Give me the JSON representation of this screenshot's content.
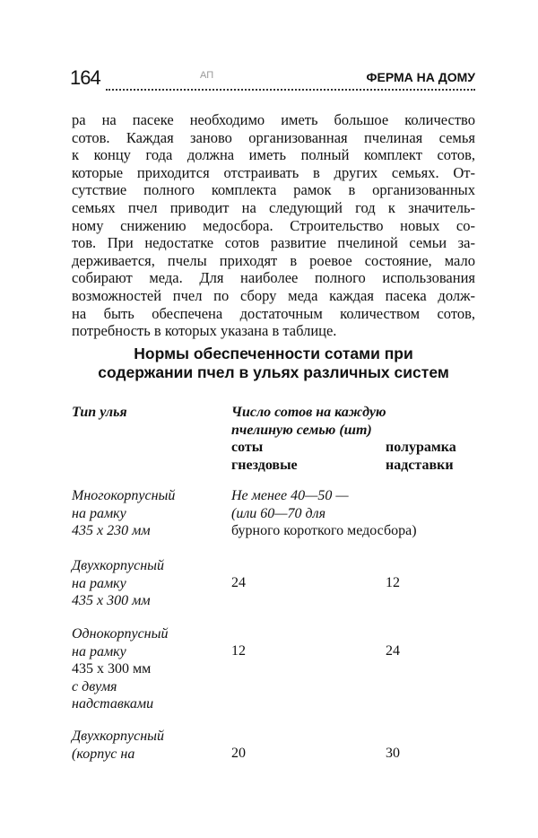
{
  "header": {
    "page_number": "164",
    "mark": "АП",
    "running_title": "ФЕРМА НА ДОМУ"
  },
  "paragraph_lines": [
    "ра на пасеке необходимо иметь большое количество",
    "сотов. Каждая заново организованная пчелиная семья",
    "к концу года должна иметь полный комплект сотов,",
    "которые приходится отстраивать в других семьях. От-",
    "сутствие полного комплекта рамок в организованных",
    "семьях пчел приводит на следующий год к значитель-",
    "ному снижению медосбора. Строительство новых со-",
    "тов. При недостатке сотов развитие пчелиной семьи за-",
    "держивается, пчелы приходят в роевое состояние, мало",
    "собирают меда. Для наиболее полного использования",
    "возможностей пчел по сбору меда каждая пасека долж-",
    "на быть обеспечена достаточным количеством сотов,",
    "потребность в которых указана в таблице."
  ],
  "table": {
    "title_lines": [
      "Нормы обеспеченности сотами при",
      "содержании пчел в ульях различных систем"
    ],
    "col1_header": "Тип улья",
    "col2_header_lines": [
      "Число сотов на каждую",
      "пчелиную семью (шт)"
    ],
    "sub_headers": {
      "nest": [
        "соты",
        "гнездовые"
      ],
      "super": [
        "полурамка",
        "надставки"
      ]
    },
    "rows": [
      {
        "type_lines": [
          "Многокорпусный",
          "на рамку",
          "435 х 230 мм"
        ],
        "value_lines": [
          "Не менее 40—50 —",
          "(или 60—70 для",
          "бурного короткого медосбора)"
        ]
      },
      {
        "type_lines": [
          "Двухкорпусный",
          "на рамку",
          "435 х 300 мм"
        ],
        "nest": "24",
        "super": "12"
      },
      {
        "type_lines": [
          "Однокорпусный",
          "на рамку",
          "435 х 300 мм",
          "с двумя",
          "надставками"
        ],
        "nest": "12",
        "super": "24"
      },
      {
        "type_lines": [
          "Двухкорпусный",
          "(корпус на"
        ],
        "nest": "20",
        "super": "30"
      }
    ]
  }
}
